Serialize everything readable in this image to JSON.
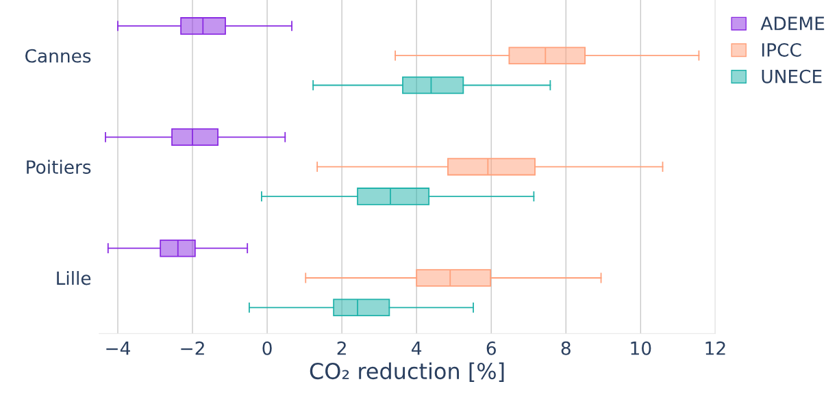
{
  "chart_data": {
    "type": "box",
    "orientation": "horizontal",
    "xlabel": "CO₂ reduction [%]",
    "categories": [
      "Cannes",
      "Poitiers",
      "Lille"
    ],
    "xlim": [
      -4.5,
      12
    ],
    "xticks": [
      {
        "value": -4,
        "label": "−4"
      },
      {
        "value": -2,
        "label": "−2"
      },
      0,
      2,
      4,
      6,
      8,
      10,
      12
    ],
    "grid": "x",
    "legend": "top right",
    "series": [
      {
        "name": "ADEME",
        "color": "#8a2be2",
        "boxes": [
          {
            "low": -4.0,
            "q1": -2.31,
            "median": -1.72,
            "q3": -1.12,
            "high": 0.66
          },
          {
            "low": -4.33,
            "q1": -2.55,
            "median": -2.0,
            "q3": -1.32,
            "high": 0.48
          },
          {
            "low": -4.26,
            "q1": -2.86,
            "median": -2.39,
            "q3": -1.93,
            "high": -0.53
          }
        ]
      },
      {
        "name": "IPCC",
        "color": "#ffa07a",
        "boxes": [
          {
            "low": 3.43,
            "q1": 6.48,
            "median": 7.45,
            "q3": 8.51,
            "high": 11.56
          },
          {
            "low": 1.34,
            "q1": 4.84,
            "median": 5.91,
            "q3": 7.17,
            "high": 10.59
          },
          {
            "low": 1.03,
            "q1": 4.0,
            "median": 4.9,
            "q3": 5.98,
            "high": 8.94
          }
        ]
      },
      {
        "name": "UNECE",
        "color": "#20b2aa",
        "boxes": [
          {
            "low": 1.23,
            "q1": 3.63,
            "median": 4.39,
            "q3": 5.25,
            "high": 7.58
          },
          {
            "low": -0.15,
            "q1": 2.42,
            "median": 3.3,
            "q3": 4.33,
            "high": 7.14
          },
          {
            "low": -0.48,
            "q1": 1.78,
            "median": 2.42,
            "q3": 3.27,
            "high": 5.52
          }
        ]
      }
    ]
  }
}
